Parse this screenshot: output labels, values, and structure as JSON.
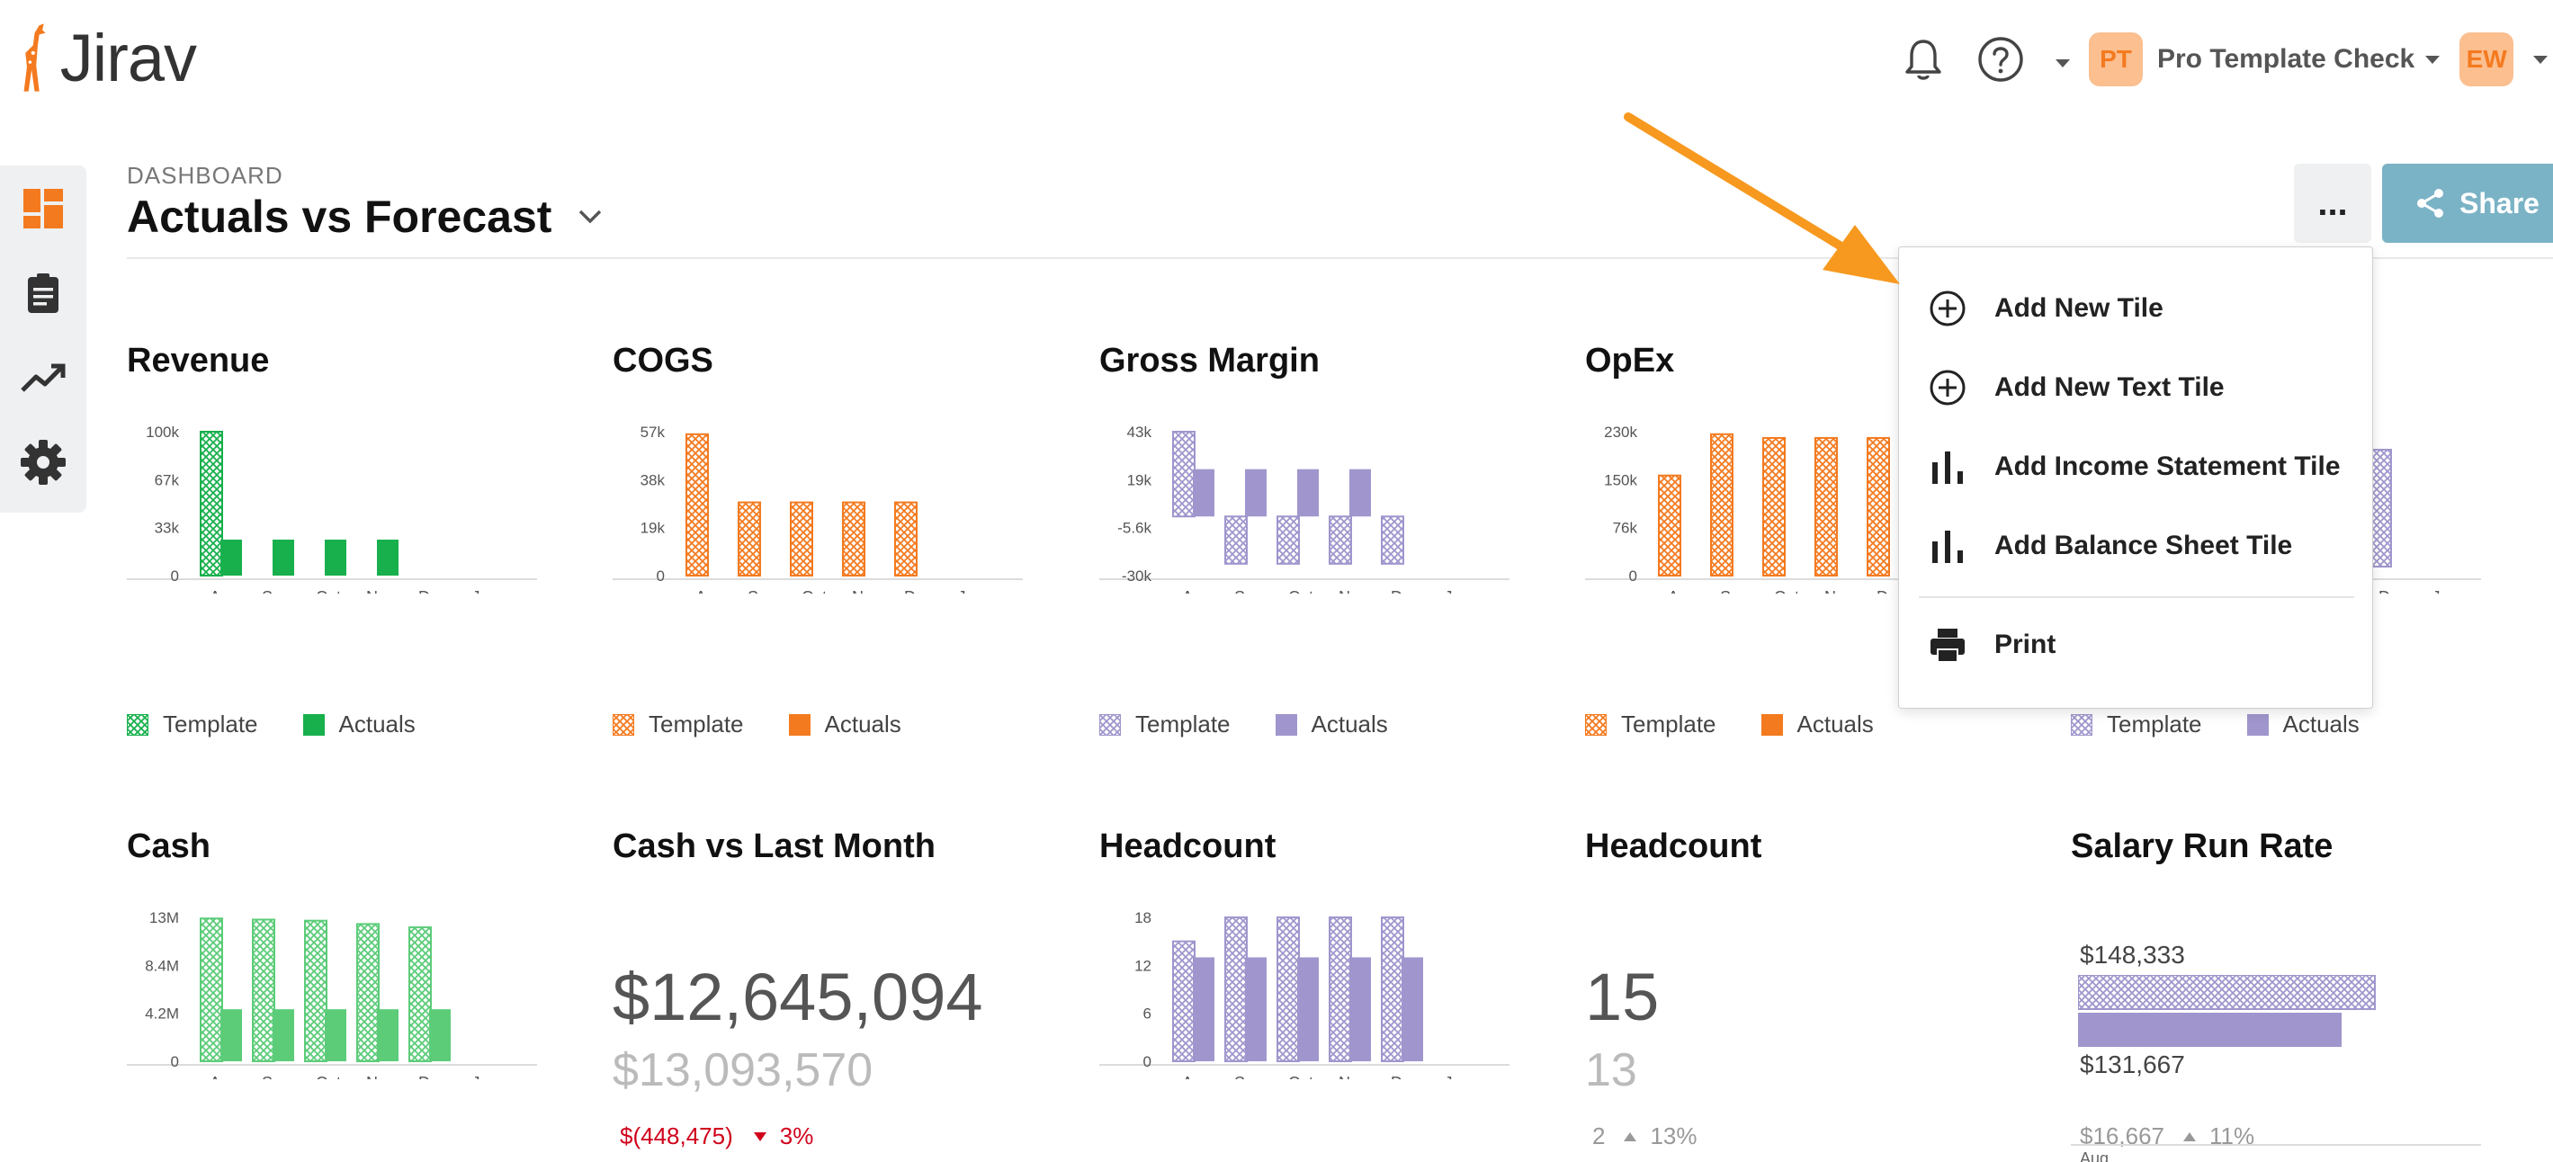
{
  "app": {
    "logo_text": "Jirav"
  },
  "header": {
    "project_initials": "PT",
    "project_name": "Pro Template Check",
    "user_initials": "EW"
  },
  "page": {
    "breadcrumb": "DASHBOARD",
    "title": "Actuals vs Forecast"
  },
  "toolbar": {
    "more_label": "...",
    "share_label": "Share"
  },
  "menu": {
    "items": [
      {
        "label": "Add New Tile",
        "icon": "plus-circle-icon"
      },
      {
        "label": "Add New Text Tile",
        "icon": "plus-circle-icon"
      },
      {
        "label": "Add Income Statement Tile",
        "icon": "bar-chart-icon"
      },
      {
        "label": "Add Balance Sheet Tile",
        "icon": "bar-chart-icon"
      },
      {
        "label": "Print",
        "icon": "printer-icon"
      }
    ]
  },
  "legend": {
    "template": "Template",
    "actuals": "Actuals"
  },
  "tiles": {
    "revenue": {
      "title": "Revenue"
    },
    "cogs": {
      "title": "COGS"
    },
    "gross_margin": {
      "title": "Gross Margin"
    },
    "opex": {
      "title": "OpEx"
    },
    "cash": {
      "title": "Cash"
    },
    "cash_vs_last": {
      "title": "Cash vs Last Month",
      "value": "$12,645,094",
      "prior": "$13,093,570",
      "delta": "$(448,475)",
      "pct": "3%"
    },
    "headcount_chart": {
      "title": "Headcount"
    },
    "headcount_num": {
      "title": "Headcount",
      "value": "15",
      "prior": "13",
      "delta": "2",
      "pct": "13%"
    },
    "salary": {
      "title": "Salary Run Rate",
      "value": "$148,333",
      "prior": "$131,667",
      "delta": "$16,667",
      "pct": "11%",
      "axis_label": "Aug",
      "bar_template_ratio": 1.0,
      "bar_actual_ratio": 0.888
    }
  },
  "colors": {
    "green": "#17b04d",
    "green_light": "#5ccc79",
    "orange": "#f47a1f",
    "purple": "#a096cd",
    "red": "#d0021b",
    "arrow": "#f7991f"
  },
  "chart_data": [
    {
      "type": "bar",
      "title": "Revenue",
      "categories": [
        "Aug",
        "Sep",
        "Oct",
        "Nov",
        "Dec",
        "Jan"
      ],
      "y_ticks": [
        "100k",
        "67k",
        "33k",
        "0"
      ],
      "ylim": [
        0,
        100
      ],
      "series": [
        {
          "name": "Template",
          "values": [
            100,
            null,
            null,
            null,
            null,
            null
          ]
        },
        {
          "name": "Actuals",
          "values": [
            25,
            25,
            25,
            25,
            null,
            null
          ]
        }
      ],
      "color": "green"
    },
    {
      "type": "bar",
      "title": "COGS",
      "categories": [
        "Aug",
        "Sep",
        "Oct",
        "Nov",
        "Dec",
        "Jan"
      ],
      "y_ticks": [
        "57k",
        "38k",
        "19k",
        "0"
      ],
      "ylim": [
        0,
        57
      ],
      "series": [
        {
          "name": "Template",
          "values": [
            56,
            29,
            29,
            29,
            29,
            null
          ]
        },
        {
          "name": "Actuals",
          "values": [
            null,
            null,
            null,
            null,
            null,
            null
          ]
        }
      ],
      "color": "orange"
    },
    {
      "type": "bar",
      "title": "Gross Margin",
      "categories": [
        "Aug",
        "Sep",
        "Oct",
        "Nov",
        "Dec",
        "Jan"
      ],
      "y_ticks": [
        "43k",
        "19k",
        "-5.6k",
        "-30k"
      ],
      "ylim": [
        -30,
        43
      ],
      "series": [
        {
          "name": "Template",
          "values": [
            43,
            -24,
            -24,
            -24,
            -24,
            null
          ]
        },
        {
          "name": "Actuals",
          "values": [
            24,
            24,
            24,
            24,
            null,
            null
          ]
        }
      ],
      "color": "purple"
    },
    {
      "type": "bar",
      "title": "OpEx",
      "categories": [
        "Aug",
        "Sep",
        "Oct",
        "Nov",
        "Dec"
      ],
      "y_ticks": [
        "230k",
        "150k",
        "76k",
        "0"
      ],
      "ylim": [
        0,
        230
      ],
      "series": [
        {
          "name": "Template",
          "values": [
            160,
            226,
            220,
            220,
            220
          ]
        },
        {
          "name": "Actuals",
          "values": [
            null,
            null,
            null,
            null,
            null
          ]
        }
      ],
      "color": "orange"
    },
    {
      "type": "bar",
      "title": "",
      "categories": [
        "Dec",
        "Jan"
      ],
      "y_ticks": [],
      "series": [
        {
          "name": "Template",
          "values": [
            150,
            null
          ]
        },
        {
          "name": "Actuals",
          "values": [
            null,
            null
          ]
        }
      ],
      "color": "purple"
    },
    {
      "type": "bar",
      "title": "Cash",
      "categories": [
        "Aug",
        "Sep",
        "Oct",
        "Nov",
        "Dec",
        "Jan"
      ],
      "y_ticks": [
        "13M",
        "8.4M",
        "4.2M",
        "0"
      ],
      "ylim": [
        0,
        13
      ],
      "series": [
        {
          "name": "Template",
          "values": [
            12.9,
            12.8,
            12.7,
            12.4,
            12.1,
            null
          ]
        },
        {
          "name": "Actuals",
          "values": [
            4.7,
            4.7,
            4.7,
            4.7,
            4.7,
            null
          ]
        }
      ],
      "color": "green_light"
    },
    {
      "type": "bar",
      "title": "Headcount",
      "categories": [
        "Aug",
        "Sep",
        "Oct",
        "Nov",
        "Dec",
        "Jan"
      ],
      "y_ticks": [
        "18",
        "12",
        "6",
        "0"
      ],
      "ylim": [
        0,
        18
      ],
      "series": [
        {
          "name": "Template",
          "values": [
            15,
            18,
            18,
            18,
            18,
            null
          ]
        },
        {
          "name": "Actuals",
          "values": [
            13,
            13,
            13,
            13,
            13,
            null
          ]
        }
      ],
      "color": "purple"
    }
  ]
}
